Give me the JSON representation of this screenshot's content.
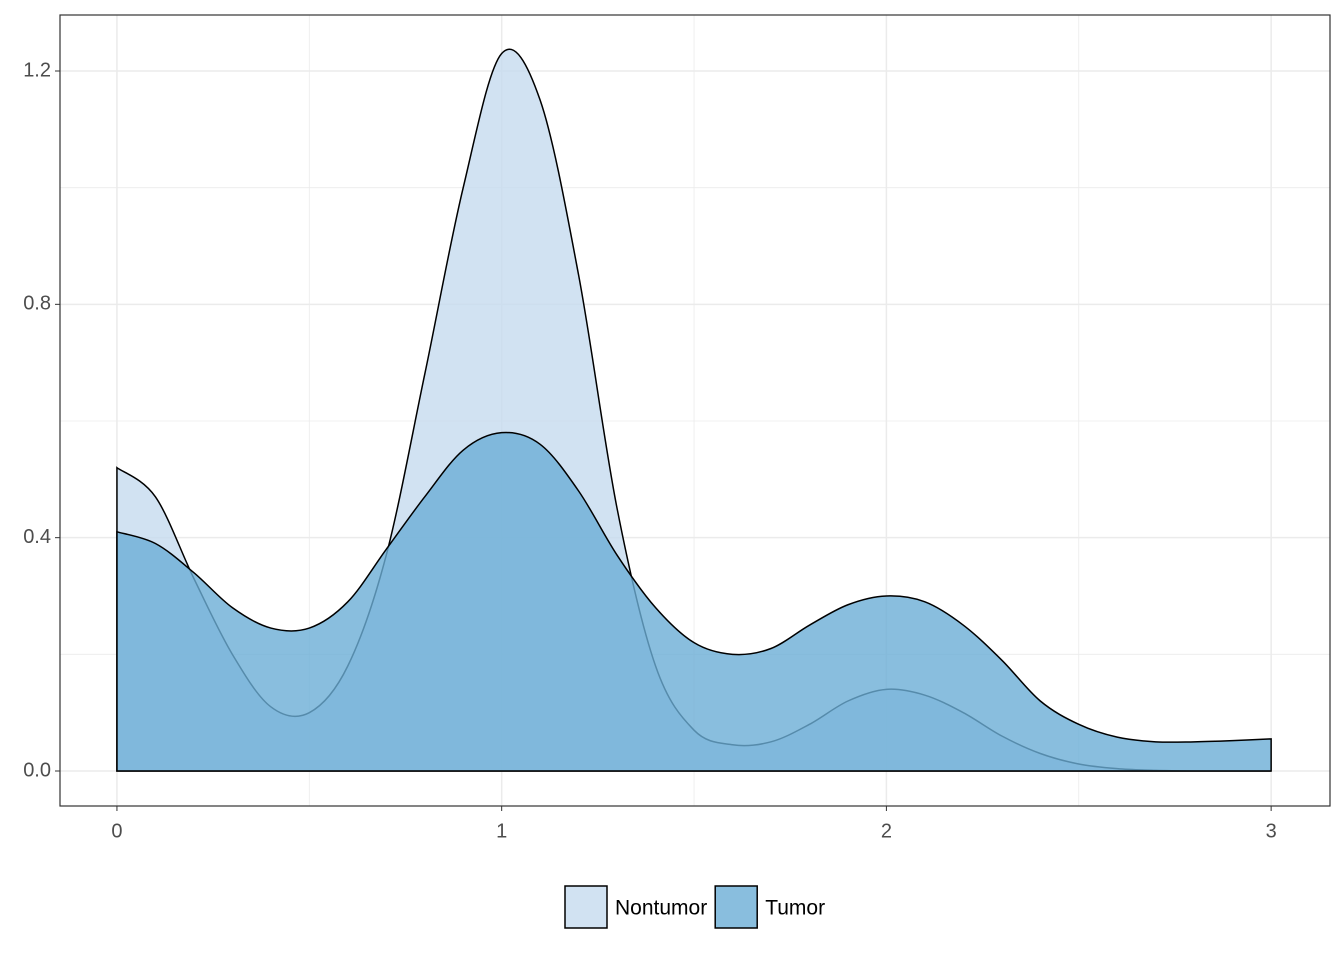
{
  "chart_data": {
    "type": "area",
    "x": [
      0,
      0.1,
      0.2,
      0.3,
      0.4,
      0.5,
      0.6,
      0.7,
      0.8,
      0.9,
      1.0,
      1.1,
      1.2,
      1.3,
      1.4,
      1.5,
      1.6,
      1.7,
      1.8,
      1.9,
      2.0,
      2.1,
      2.2,
      2.3,
      2.4,
      2.5,
      2.6,
      2.7,
      2.8,
      2.9,
      3.0
    ],
    "series": [
      {
        "name": "Nontumor",
        "color": "#c6dbef",
        "values": [
          0.52,
          0.47,
          0.33,
          0.2,
          0.11,
          0.1,
          0.18,
          0.37,
          0.68,
          1.0,
          1.23,
          1.15,
          0.85,
          0.45,
          0.18,
          0.07,
          0.045,
          0.05,
          0.08,
          0.12,
          0.14,
          0.13,
          0.1,
          0.06,
          0.03,
          0.012,
          0.004,
          0.001,
          0,
          0,
          0
        ]
      },
      {
        "name": "Tumor",
        "color": "#6baed6",
        "values": [
          0.41,
          0.39,
          0.34,
          0.28,
          0.245,
          0.245,
          0.29,
          0.38,
          0.47,
          0.55,
          0.58,
          0.56,
          0.48,
          0.37,
          0.28,
          0.22,
          0.2,
          0.21,
          0.25,
          0.285,
          0.3,
          0.29,
          0.25,
          0.19,
          0.12,
          0.08,
          0.058,
          0.05,
          0.05,
          0.052,
          0.055
        ]
      }
    ],
    "xlim": [
      -0.148,
      3.153
    ],
    "ylim": [
      -0.06,
      1.296
    ],
    "xticks": [
      0,
      1,
      2,
      3
    ],
    "yticks": [
      {
        "value": 0,
        "label": "0.0"
      },
      0.4,
      0.8,
      1.2
    ],
    "grid": true,
    "legend": "bottom"
  }
}
